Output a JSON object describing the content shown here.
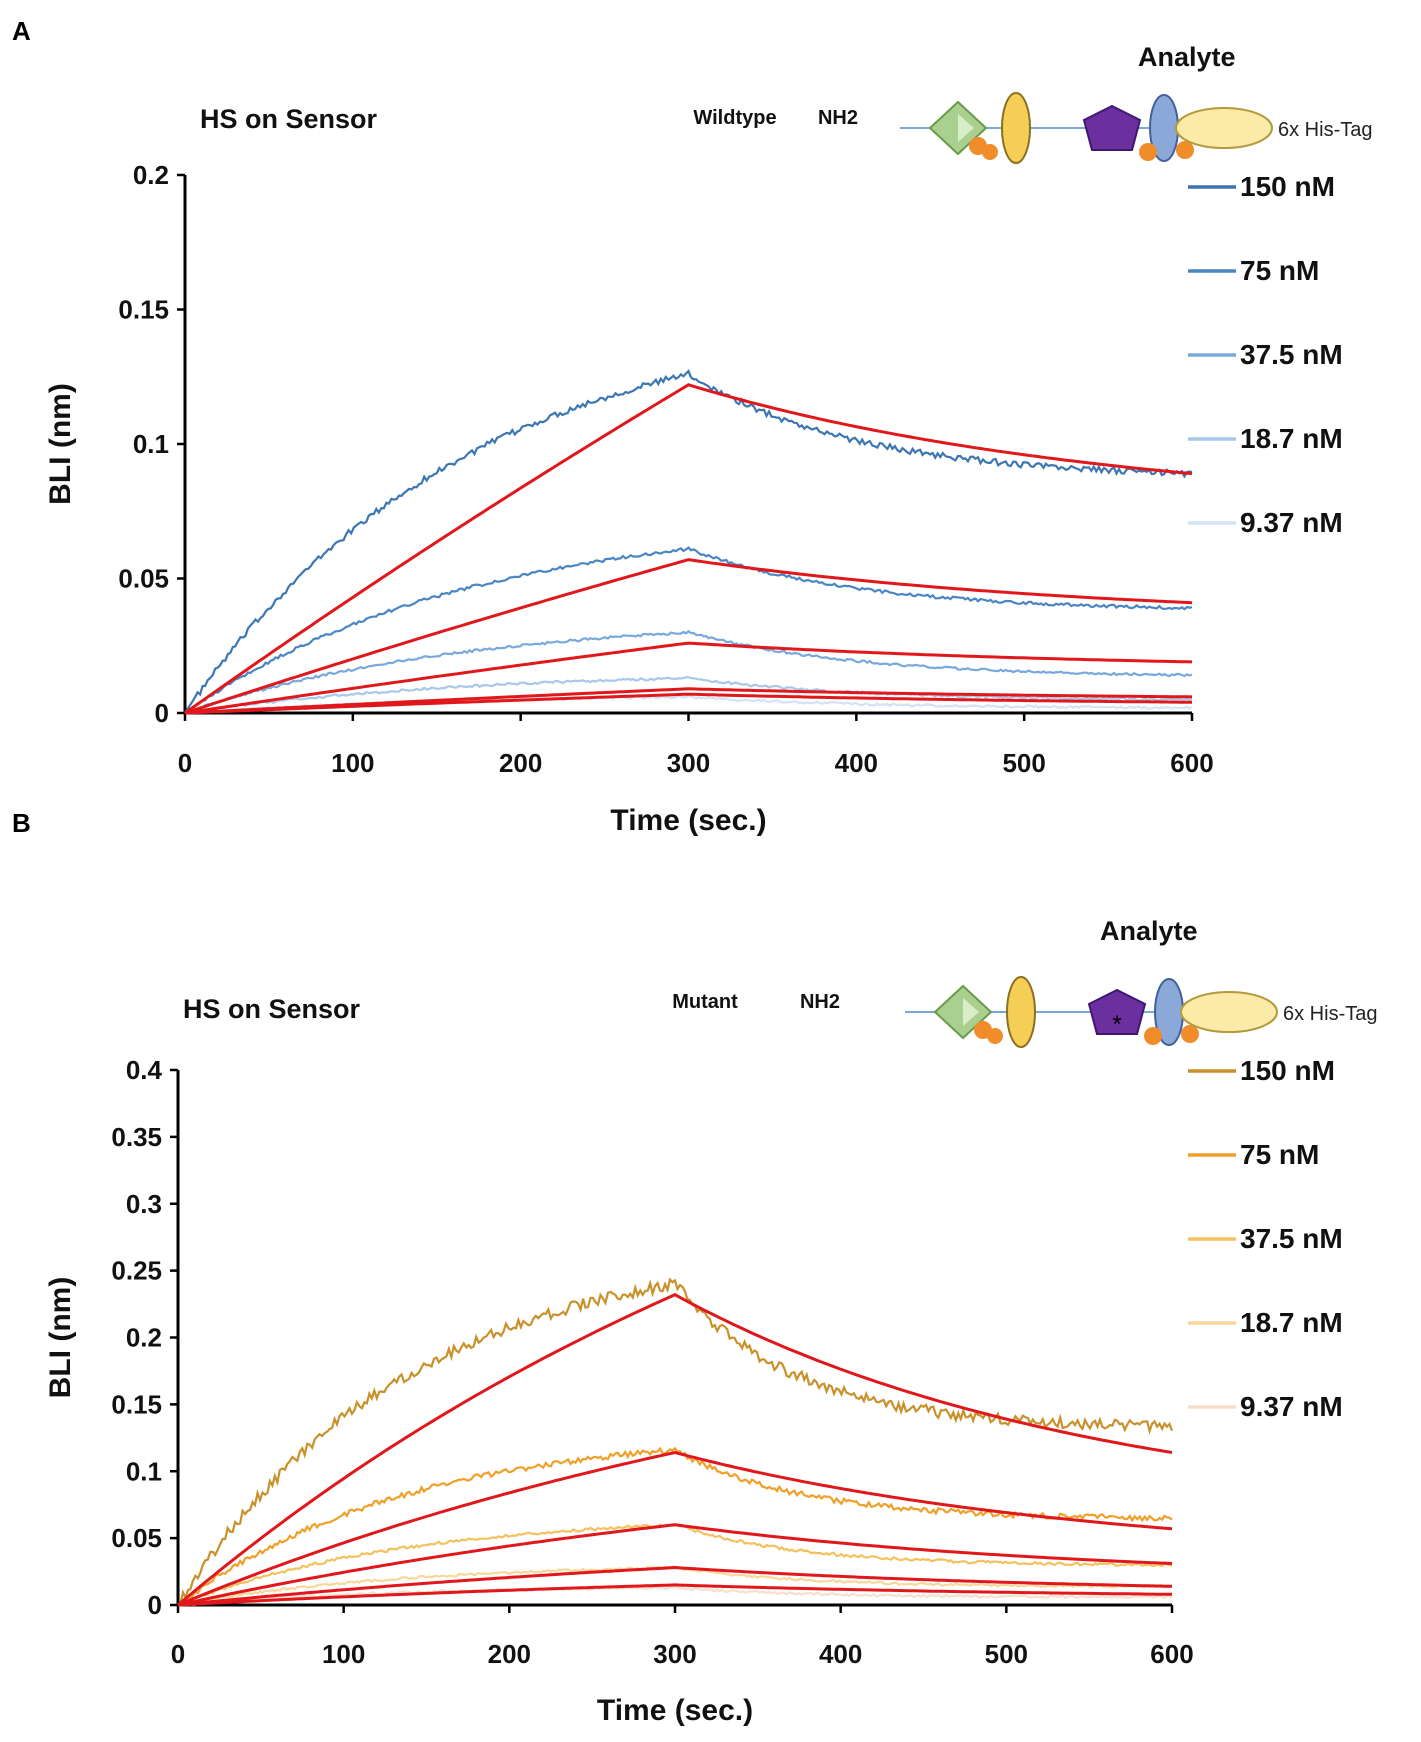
{
  "panels": [
    {
      "letter": "A",
      "sensor_label": "HS on Sensor",
      "construct_label": "Wildtype",
      "nterm_label": "NH2",
      "analyte_label": "Analyte",
      "tag_label": "6x His-Tag",
      "mutant_star": false,
      "colors": {
        "data": [
          "#3d77b3",
          "#4a86c4",
          "#78a8dc",
          "#a9c7ea",
          "#d3e2f5"
        ],
        "fit": "#e0171b"
      }
    },
    {
      "letter": "B",
      "sensor_label": "HS on Sensor",
      "construct_label": "Mutant",
      "nterm_label": "NH2",
      "analyte_label": "Analyte",
      "tag_label": "6x His-Tag",
      "mutant_star": true,
      "colors": {
        "data": [
          "#c9912b",
          "#f0a028",
          "#f3c25e",
          "#f7d89a",
          "#f6dfcc"
        ],
        "fit": "#e0171b"
      }
    }
  ],
  "chart_data": [
    {
      "type": "line",
      "title": "HS on Sensor",
      "xlabel": "Time (sec.)",
      "ylabel": "BLI (nm)",
      "xlim": [
        0,
        600
      ],
      "ylim": [
        0,
        0.2
      ],
      "xticks": [
        "0",
        "100",
        "200",
        "300",
        "400",
        "500",
        "600"
      ],
      "yticks": [
        "0",
        "0.05",
        "0.1",
        "0.15",
        "0.2"
      ],
      "grid": false,
      "legend_position": "right",
      "association_end": 300,
      "series": [
        {
          "name": "150 nM",
          "peak": 0.126,
          "end": 0.089,
          "fit_peak": 0.122,
          "fit_end": 0.089,
          "shape": 0.6,
          "fit_shape": 0.12,
          "decay_shape": 3.0
        },
        {
          "name": "75 nM",
          "peak": 0.061,
          "end": 0.039,
          "fit_peak": 0.057,
          "fit_end": 0.041,
          "shape": 0.6,
          "fit_shape": 0.12,
          "decay_shape": 3.0
        },
        {
          "name": "37.5 nM",
          "peak": 0.03,
          "end": 0.014,
          "fit_peak": 0.026,
          "fit_end": 0.019,
          "shape": 0.6,
          "fit_shape": 0.12,
          "decay_shape": 3.0
        },
        {
          "name": "18.7 nM",
          "peak": 0.013,
          "end": 0.005,
          "fit_peak": 0.009,
          "fit_end": 0.006,
          "shape": 0.6,
          "fit_shape": 0.12,
          "decay_shape": 3.0
        },
        {
          "name": "9.37 nM",
          "peak": 0.006,
          "end": 0.002,
          "fit_peak": 0.007,
          "fit_end": 0.004,
          "shape": 0.6,
          "fit_shape": 0.12,
          "decay_shape": 3.0
        }
      ]
    },
    {
      "type": "line",
      "title": "HS on Sensor",
      "xlabel": "Time (sec.)",
      "ylabel": "BLI (nm)",
      "xlim": [
        0,
        600
      ],
      "ylim": [
        0,
        0.4
      ],
      "xticks": [
        "0",
        "100",
        "200",
        "300",
        "400",
        "500",
        "600"
      ],
      "yticks": [
        "0",
        "0.05",
        "0.1",
        "0.15",
        "0.2",
        "0.25",
        "0.3",
        "0.35",
        "0.4"
      ],
      "grid": false,
      "legend_position": "right",
      "association_end": 300,
      "series": [
        {
          "name": "150 nM",
          "peak": 0.24,
          "end": 0.133,
          "fit_peak": 0.232,
          "fit_end": 0.114,
          "shape": 1.0,
          "fit_shape": 0.6,
          "decay_shape": 4.0
        },
        {
          "name": "75 nM",
          "peak": 0.116,
          "end": 0.065,
          "fit_peak": 0.114,
          "fit_end": 0.057,
          "shape": 1.0,
          "fit_shape": 0.6,
          "decay_shape": 4.0
        },
        {
          "name": "37.5 nM",
          "peak": 0.06,
          "end": 0.03,
          "fit_peak": 0.06,
          "fit_end": 0.031,
          "shape": 1.0,
          "fit_shape": 0.6,
          "decay_shape": 4.0
        },
        {
          "name": "18.7 nM",
          "peak": 0.028,
          "end": 0.014,
          "fit_peak": 0.028,
          "fit_end": 0.014,
          "shape": 1.0,
          "fit_shape": 0.6,
          "decay_shape": 4.0
        },
        {
          "name": "9.37 nM",
          "peak": 0.013,
          "end": 0.006,
          "fit_peak": 0.015,
          "fit_end": 0.008,
          "shape": 1.0,
          "fit_shape": 0.6,
          "decay_shape": 4.0
        }
      ]
    }
  ]
}
